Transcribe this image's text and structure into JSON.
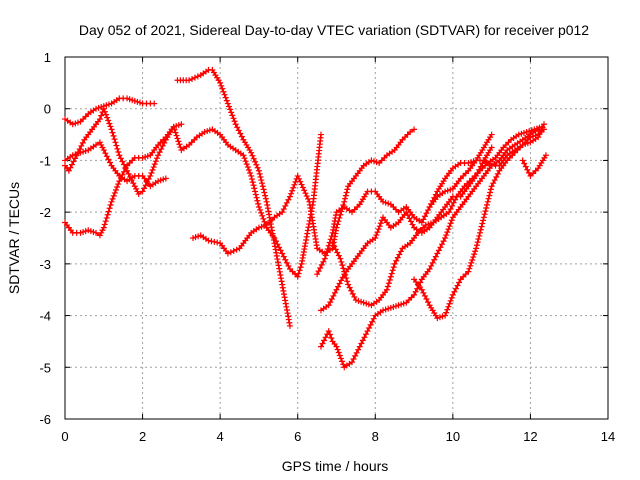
{
  "chart_data": {
    "type": "scatter",
    "title": "Day 052 of 2021, Sidereal Day-to-day VTEC variation (SDTVAR) for receiver p012",
    "xlabel": "GPS time / hours",
    "ylabel": "SDTVAR / TECUs",
    "xlim": [
      0,
      14
    ],
    "ylim": [
      -6,
      1
    ],
    "xticks": [
      "0",
      "2",
      "4",
      "6",
      "8",
      "10",
      "12",
      "14"
    ],
    "yticks": [
      "1",
      "0",
      "-1",
      "-2",
      "-3",
      "-4",
      "-5",
      "-6"
    ],
    "grid": true,
    "legend": "none",
    "color": "#ff0000",
    "marker": "plus",
    "series": [
      {
        "x": [
          0.0,
          0.2,
          0.4,
          0.6,
          0.8,
          1.0,
          1.2,
          1.4,
          1.6,
          1.8,
          2.0,
          2.2,
          2.3
        ],
        "y": [
          -0.2,
          -0.3,
          -0.25,
          -0.1,
          0.0,
          0.05,
          0.1,
          0.2,
          0.2,
          0.15,
          0.1,
          0.1,
          0.1
        ]
      },
      {
        "x": [
          0.0,
          0.1,
          0.3,
          0.5,
          0.7,
          0.9,
          1.0,
          1.2,
          1.4,
          1.6,
          1.8,
          1.9,
          2.0,
          2.2,
          2.4,
          2.6,
          2.8,
          3.0
        ],
        "y": [
          -1.1,
          -1.2,
          -0.9,
          -0.6,
          -0.4,
          -0.2,
          0.0,
          -0.4,
          -0.9,
          -1.2,
          -1.5,
          -1.65,
          -1.6,
          -1.3,
          -0.9,
          -0.6,
          -0.35,
          -0.3
        ]
      },
      {
        "x": [
          0.0,
          0.2,
          0.4,
          0.6,
          0.8,
          0.9,
          1.0,
          1.2,
          1.4,
          1.6,
          1.8,
          2.0,
          2.2,
          2.4,
          2.6
        ],
        "y": [
          -1.0,
          -0.9,
          -0.85,
          -0.8,
          -0.7,
          -0.65,
          -0.8,
          -1.1,
          -1.3,
          -1.4,
          -1.3,
          -1.3,
          -1.5,
          -1.4,
          -1.35
        ]
      },
      {
        "x": [
          0.0,
          0.1,
          0.2,
          0.4,
          0.6,
          0.8,
          0.9,
          1.0,
          1.2,
          1.4,
          1.6,
          1.8,
          2.0,
          2.2,
          2.4,
          2.6,
          2.8,
          3.0,
          3.2,
          3.4,
          3.6,
          3.8,
          4.0,
          4.2,
          4.4,
          4.6,
          4.8,
          5.0,
          5.2,
          5.4,
          5.6,
          5.8,
          6.0,
          6.1,
          6.2,
          6.4,
          6.6
        ],
        "y": [
          -2.2,
          -2.3,
          -2.4,
          -2.4,
          -2.35,
          -2.4,
          -2.45,
          -2.3,
          -1.8,
          -1.4,
          -1.1,
          -0.95,
          -0.95,
          -0.9,
          -0.7,
          -0.55,
          -0.35,
          -0.8,
          -0.7,
          -0.55,
          -0.45,
          -0.4,
          -0.5,
          -0.7,
          -0.8,
          -0.9,
          -1.3,
          -1.9,
          -2.3,
          -2.5,
          -2.8,
          -3.1,
          -3.25,
          -3.0,
          -2.6,
          -1.8,
          -0.5
        ]
      },
      {
        "x": [
          2.9,
          3.2,
          3.5,
          3.7,
          3.8,
          4.0,
          4.2,
          4.4,
          4.6,
          4.8,
          5.0,
          5.2,
          5.4,
          5.6,
          5.8
        ],
        "y": [
          0.55,
          0.55,
          0.65,
          0.75,
          0.75,
          0.5,
          0.1,
          -0.3,
          -0.6,
          -0.85,
          -1.2,
          -1.8,
          -2.6,
          -3.4,
          -4.2
        ]
      },
      {
        "x": [
          3.3,
          3.5,
          3.7,
          4.0,
          4.2,
          4.5,
          4.8,
          5.0,
          5.2,
          5.4,
          5.6,
          5.8,
          6.0,
          6.3,
          6.5,
          6.7,
          6.9,
          7.0,
          7.2,
          7.3,
          7.5,
          7.7,
          7.9,
          8.1,
          8.3,
          8.5,
          8.7,
          8.9,
          9.0
        ],
        "y": [
          -2.5,
          -2.45,
          -2.55,
          -2.6,
          -2.8,
          -2.7,
          -2.4,
          -2.3,
          -2.25,
          -2.1,
          -2.0,
          -1.7,
          -1.3,
          -1.8,
          -2.7,
          -2.8,
          -2.7,
          -2.3,
          -1.8,
          -1.5,
          -1.3,
          -1.1,
          -1.0,
          -1.05,
          -0.9,
          -0.8,
          -0.6,
          -0.45,
          -0.4
        ]
      },
      {
        "x": [
          6.5,
          6.7,
          6.9,
          7.0,
          7.2,
          7.4,
          7.6,
          7.8,
          8.0,
          8.2,
          8.4,
          8.6,
          8.8,
          9.0,
          9.2,
          9.4,
          9.6,
          9.8,
          10.0,
          10.2,
          10.4,
          10.6,
          10.8,
          11.0
        ],
        "y": [
          -3.2,
          -2.9,
          -2.4,
          -2.0,
          -1.9,
          -2.0,
          -1.85,
          -1.6,
          -1.6,
          -1.8,
          -1.85,
          -2.0,
          -1.9,
          -2.1,
          -2.2,
          -1.9,
          -1.7,
          -1.6,
          -1.55,
          -1.35,
          -1.2,
          -1.0,
          -0.75,
          -0.5
        ]
      },
      {
        "x": [
          6.6,
          6.8,
          7.0,
          7.2,
          7.4,
          7.6,
          7.8,
          8.0,
          8.2,
          8.4,
          8.6,
          8.8,
          9.0,
          9.2,
          9.4,
          9.6,
          9.8,
          10.0,
          10.2,
          10.4,
          10.6,
          10.8,
          11.0
        ],
        "y": [
          -3.9,
          -3.8,
          -3.5,
          -3.2,
          -3.0,
          -2.8,
          -2.6,
          -2.5,
          -2.1,
          -2.3,
          -2.2,
          -2.0,
          -2.3,
          -2.4,
          -2.3,
          -2.1,
          -1.9,
          -1.7,
          -1.7,
          -1.5,
          -1.3,
          -1.0,
          -0.75
        ]
      },
      {
        "x": [
          6.6,
          6.8,
          6.9,
          7.0,
          7.2,
          7.4,
          7.6,
          7.8,
          8.0,
          8.2,
          8.4,
          8.6,
          8.8,
          9.0,
          9.2,
          9.4,
          9.6,
          9.8,
          10.0,
          10.2,
          10.4,
          10.6,
          10.8,
          11.0,
          11.2,
          11.4,
          11.6,
          11.8,
          12.0,
          12.2
        ],
        "y": [
          -4.6,
          -4.3,
          -4.5,
          -4.6,
          -5.0,
          -4.9,
          -4.6,
          -4.3,
          -4.0,
          -3.9,
          -3.85,
          -3.8,
          -3.75,
          -3.6,
          -3.3,
          -3.1,
          -2.8,
          -2.5,
          -2.1,
          -1.9,
          -1.7,
          -1.5,
          -1.3,
          -1.1,
          -1.0,
          -0.8,
          -0.7,
          -0.6,
          -0.5,
          -0.4
        ]
      },
      {
        "x": [
          6.9,
          7.1,
          7.3,
          7.5,
          7.7,
          7.9,
          8.1,
          8.3,
          8.5,
          8.7,
          8.9,
          9.1,
          9.3,
          9.5,
          9.7,
          9.9,
          10.1,
          10.3,
          10.5,
          10.7,
          10.9,
          11.1,
          11.3,
          11.5,
          11.7,
          11.9,
          12.1,
          12.3
        ],
        "y": [
          -2.6,
          -2.9,
          -3.4,
          -3.7,
          -3.75,
          -3.8,
          -3.7,
          -3.5,
          -3.0,
          -2.7,
          -2.6,
          -2.4,
          -2.25,
          -2.2,
          -2.1,
          -2.0,
          -1.7,
          -1.5,
          -1.35,
          -1.2,
          -1.05,
          -0.95,
          -0.75,
          -0.6,
          -0.5,
          -0.45,
          -0.4,
          -0.35
        ]
      },
      {
        "x": [
          9.0,
          9.2,
          9.4,
          9.6,
          9.8,
          10.0,
          10.2,
          10.4,
          10.6,
          10.8,
          11.0,
          11.2,
          11.4,
          11.6,
          11.8,
          12.0,
          12.2,
          12.35
        ],
        "y": [
          -3.3,
          -3.5,
          -3.8,
          -4.05,
          -4.0,
          -3.6,
          -3.3,
          -3.15,
          -2.7,
          -2.1,
          -1.5,
          -1.2,
          -1.0,
          -0.85,
          -0.7,
          -0.55,
          -0.5,
          -0.4
        ]
      },
      {
        "x": [
          9.4,
          9.6,
          9.8,
          10.0,
          10.2,
          10.4,
          10.6,
          10.8,
          11.0,
          11.2,
          11.4,
          11.6,
          11.8,
          12.0,
          12.2,
          12.35
        ],
        "y": [
          -1.9,
          -1.6,
          -1.35,
          -1.15,
          -1.05,
          -1.05,
          -1.0,
          -1.0,
          -1.1,
          -1.1,
          -0.9,
          -0.8,
          -0.7,
          -0.65,
          -0.55,
          -0.3
        ]
      },
      {
        "x": [
          11.8,
          12.0,
          12.2,
          12.4
        ],
        "y": [
          -1.0,
          -1.3,
          -1.15,
          -0.9
        ]
      }
    ]
  }
}
